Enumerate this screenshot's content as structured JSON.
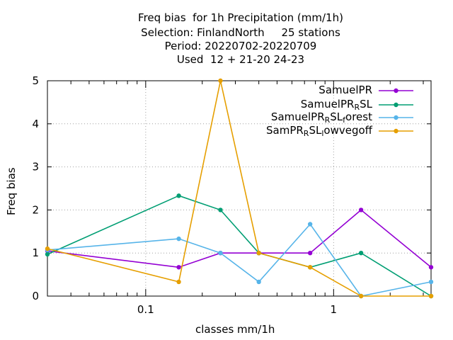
{
  "title": {
    "line1": "Freq bias  for 1h Precipitation (mm/1h)",
    "line2": "Selection: FinlandNorth     25 stations",
    "line3": "Period: 20220702-20220709",
    "line4": "Used  12 + 21-20 24-23"
  },
  "chart_data": {
    "type": "line",
    "title": "Freq bias  for 1h Precipitation (mm/1h)",
    "xlabel": "classes mm/1h",
    "ylabel": "Freq bias",
    "xscale": "log",
    "xlim": [
      0.03,
      3.3
    ],
    "ylim": [
      0,
      5
    ],
    "xticks": [
      {
        "value": 0.1,
        "label": "0.1"
      },
      {
        "value": 1,
        "label": "1"
      }
    ],
    "yticks": [
      0,
      1,
      2,
      3,
      4,
      5
    ],
    "grid": true,
    "legend_position": "top-right",
    "series": [
      {
        "name": "SamuelPR",
        "legend": {
          "base": "SamuelPR",
          "sub": "",
          "tail": ""
        },
        "color": "#9400d3",
        "x": [
          0.03,
          0.15,
          0.25,
          0.4,
          0.75,
          1.4,
          3.3
        ],
        "y": [
          1.05,
          0.67,
          1.0,
          1.0,
          1.0,
          2.0,
          0.67
        ]
      },
      {
        "name": "SamuelPR_RSL",
        "legend": {
          "base": "SamuelPR",
          "sub": "R",
          "tail": "SL"
        },
        "color": "#009e73",
        "x": [
          0.03,
          0.15,
          0.25,
          0.4,
          0.75,
          1.4,
          3.3
        ],
        "y": [
          0.97,
          2.33,
          2.0,
          1.0,
          0.67,
          1.0,
          0.0
        ]
      },
      {
        "name": "SamuelPR_RSL_forest",
        "legend": {
          "base": "SamuelPR",
          "sub": "R",
          "tail": "SL",
          "sub2": "f",
          "tail2": "orest"
        },
        "color": "#56b4e9",
        "x": [
          0.03,
          0.15,
          0.25,
          0.4,
          0.75,
          1.4,
          3.3
        ],
        "y": [
          1.07,
          1.33,
          1.0,
          0.33,
          1.67,
          0.0,
          0.33
        ]
      },
      {
        "name": "SamPR_RSL_lowvegoff",
        "legend": {
          "base": "SamPR",
          "sub": "R",
          "tail": "SL",
          "sub2": "l",
          "tail2": "owvegoff"
        },
        "color": "#e69f00",
        "x": [
          0.03,
          0.15,
          0.25,
          0.4,
          0.75,
          1.4,
          3.3
        ],
        "y": [
          1.1,
          0.33,
          5.0,
          1.0,
          0.67,
          0.0,
          0.0
        ]
      }
    ]
  }
}
